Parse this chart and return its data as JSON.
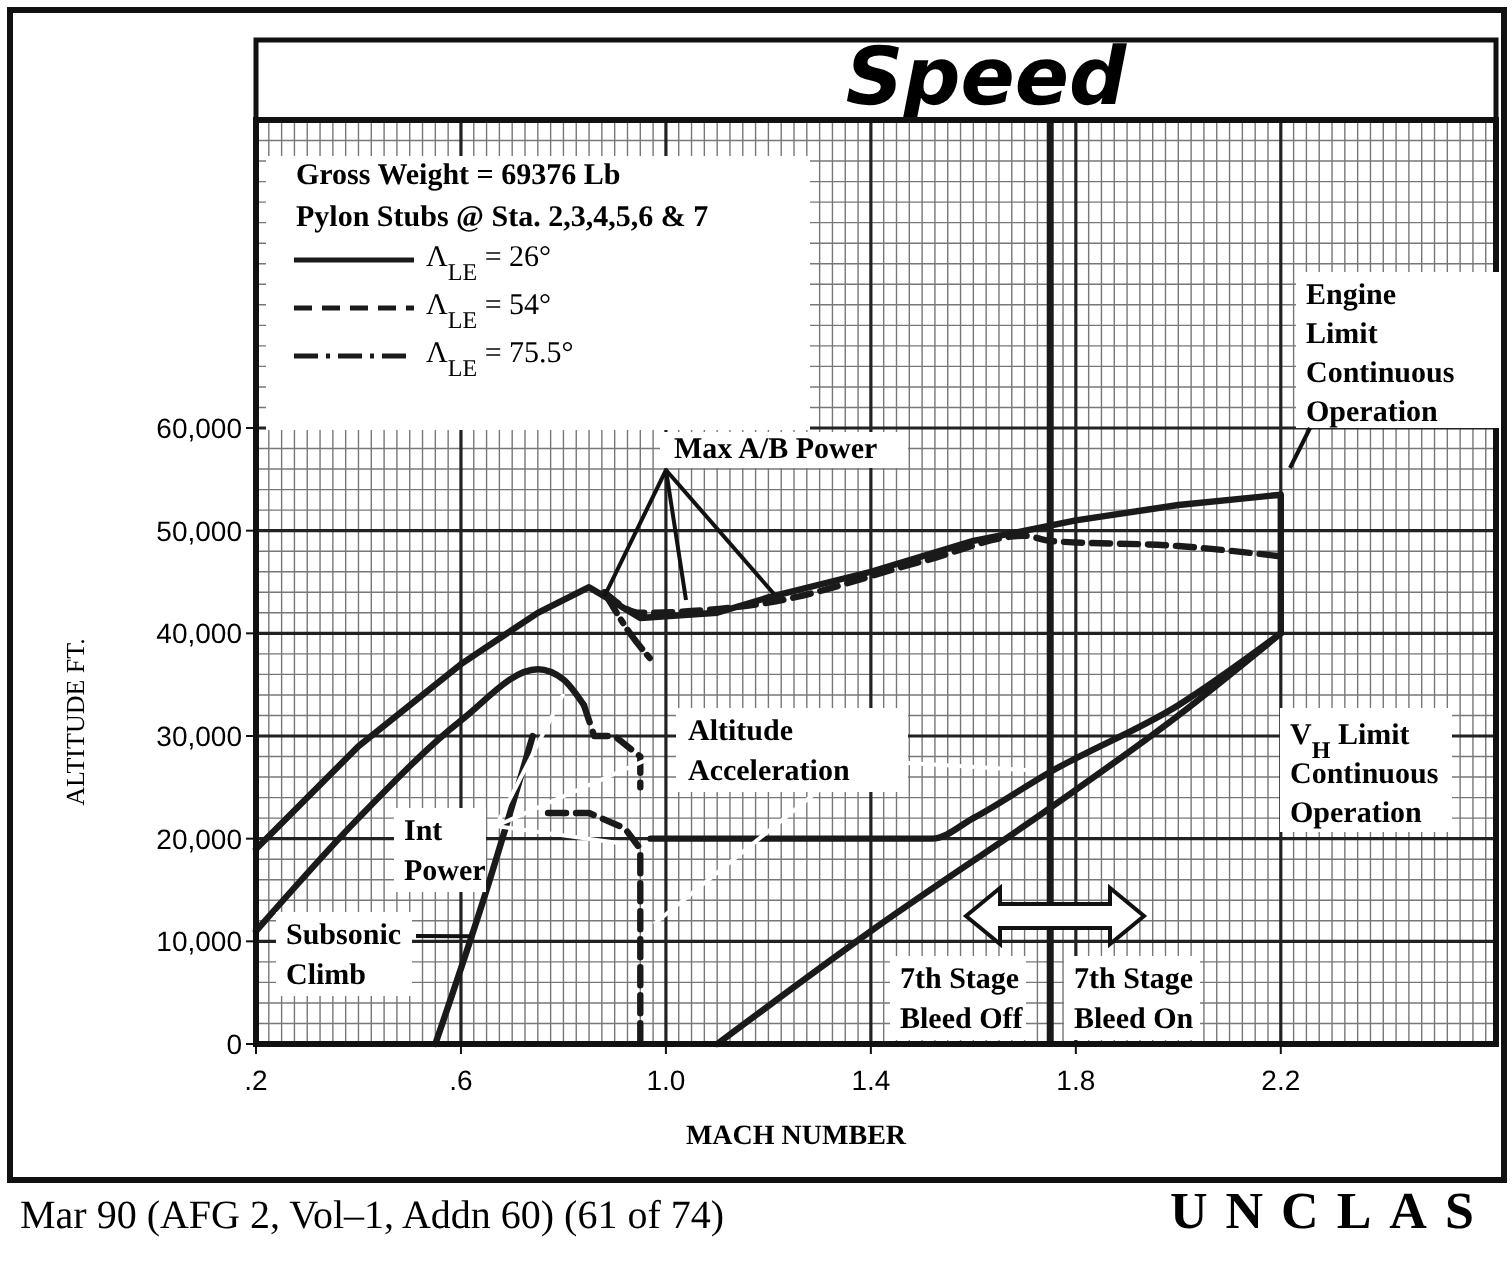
{
  "chart_data": {
    "type": "line",
    "title": "Speed",
    "xlabel": "MACH NUMBER",
    "ylabel": "ALTITUDE  FT.",
    "xlim": [
      0.2,
      2.62
    ],
    "xticks": [
      {
        "value": 0.2,
        "label": ".2"
      },
      {
        "value": 0.6,
        "label": ".6"
      },
      {
        "value": 1.0,
        "label": "1.0"
      },
      1.4,
      1.8,
      2.2
    ],
    "ylim": [
      0,
      90000
    ],
    "yticks": [
      0,
      {
        "value": 10000,
        "label": "10,000"
      },
      {
        "value": 20000,
        "label": "20,000"
      },
      {
        "value": 30000,
        "label": "30,000"
      },
      {
        "value": 40000,
        "label": "40,000"
      },
      {
        "value": 50000,
        "label": "50,000"
      },
      {
        "value": 60000,
        "label": "60,000"
      }
    ],
    "grid": true,
    "legend": "top left",
    "marker": "none",
    "series": [
      {
        "name": "Λ$_{LE}$ = 26°",
        "color": "#1a1a1a",
        "line_style": "solid",
        "x": [
          0.2,
          0.4,
          0.6,
          0.75,
          0.85,
          0.9,
          0.95,
          1.1,
          1.2,
          1.4,
          1.6,
          1.8,
          2.0,
          2.2,
          2.2
        ],
        "values": [
          19000,
          29000,
          37000,
          42000,
          44500,
          43000,
          41500,
          42000,
          43500,
          46000,
          49000,
          51000,
          52500,
          53500,
          40000
        ]
      },
      {
        "name": "Λ$_{LE}$ = 54°",
        "color": "#1a1a1a",
        "line_style": "dashed",
        "x": [
          0.88,
          0.95,
          1.2,
          1.5,
          1.7,
          1.75,
          2.0,
          2.2
        ],
        "values": [
          44000,
          42000,
          43000,
          47000,
          49500,
          49000,
          48500,
          47500
        ]
      },
      {
        "name": "Λ$_{LE}$ = 75.5°",
        "color": "#1a1a1a",
        "line_style": "dashdot",
        "x": [
          0.88,
          0.93,
          0.97
        ],
        "values": [
          44000,
          40000,
          37500
        ]
      },
      {
        "color": "#1a1a1a",
        "line_style": "solid",
        "x": [
          0.2,
          0.4,
          0.6,
          0.75,
          0.8,
          0.84
        ],
        "values": [
          11000,
          22000,
          31500,
          36500,
          35500,
          33000
        ]
      },
      {
        "color": "#1a1a1a",
        "line_style": "dashed",
        "x": [
          0.84,
          0.86,
          0.9,
          0.95,
          0.95
        ],
        "values": [
          33000,
          30000,
          30000,
          28000,
          25000
        ]
      },
      {
        "color": "#1a1a1a",
        "line_style": "dashed",
        "x": [
          0.77,
          0.85,
          0.92,
          0.95,
          0.95
        ],
        "values": [
          22500,
          22500,
          21000,
          19000,
          0
        ]
      },
      {
        "color": "#1a1a1a",
        "line_style": "solid",
        "x": [
          0.55,
          0.65,
          0.74
        ],
        "values": [
          0,
          15000,
          30000
        ]
      },
      {
        "color": "#1a1a1a",
        "line_style": "solid",
        "x": [
          0.97,
          1.52,
          1.6,
          1.75,
          2.0,
          2.2
        ],
        "values": [
          20000,
          20000,
          22000,
          26500,
          33000,
          40000
        ]
      },
      {
        "color": "#1a1a1a",
        "line_style": "solid",
        "x": [
          1.1,
          1.4,
          1.75,
          2.0,
          2.2
        ],
        "values": [
          0,
          11000,
          23000,
          32000,
          40000
        ]
      }
    ],
    "ref_lines": [
      {
        "axis": "x",
        "value": 1.75,
        "color": "#1a1a1a"
      }
    ],
    "annotations": [
      "Gross Weight = 69376 Lb",
      "Pylon Stubs @ Sta. 2,3,4,5,6 & 7",
      {
        "text": "Max A/B Power",
        "x": 0.88,
        "y": 43600
      },
      "Altitude Acceleration",
      {
        "text": "Int Power",
        "x": 0.8,
        "y": 34100
      },
      {
        "text": "Subsonic Climb",
        "x": 0.62,
        "y": 10500
      },
      "Engine Limit Continuous Operation",
      "V$_{H}$ Limit Continuous Operation",
      "7th Stage Bleed Off",
      "7th Stage Bleed On",
      "Mar 90 (AFG 2, Vol–1, Addn 60) (61 of 74)",
      "UNCLAS"
    ]
  }
}
